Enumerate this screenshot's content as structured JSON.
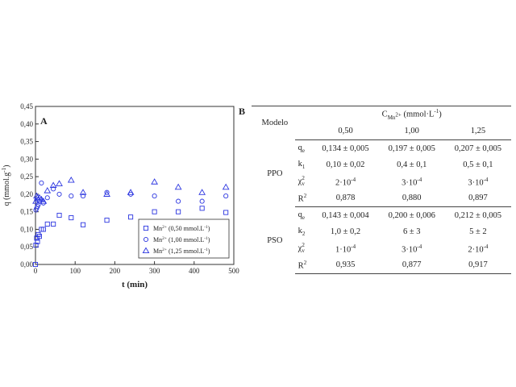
{
  "panel_b_label": "B",
  "table": {
    "header_row_label": "Modelo",
    "conc_header": "CMn2+ (mmol·L-1)",
    "conc_symbol": "C",
    "conc_subscript": "Mn",
    "conc_sub_sup": "2+",
    "conc_units": "(mmol·L",
    "conc_units_exp": "-1",
    "conc_units_close": ")",
    "concentrations": [
      "0,50",
      "1,00",
      "1,25"
    ],
    "models": [
      {
        "name": "PPO",
        "rows": [
          {
            "param": "qe",
            "p_main": "q",
            "p_sub": "e",
            "p_sup": "",
            "values": [
              "0,134 ± 0,005",
              "0,197 ± 0,005",
              "0,207 ± 0,005"
            ]
          },
          {
            "param": "k1",
            "p_main": "k",
            "p_sub": "1",
            "p_sup": "",
            "values": [
              "0,10 ± 0,02",
              "0,4 ± 0,1",
              "0,5 ± 0,1"
            ]
          },
          {
            "param": "χv2",
            "p_main": "χ",
            "p_sub": "v",
            "p_sup": "2",
            "values": [
              "2·10-4",
              "3·10-4",
              "3·10-4"
            ]
          },
          {
            "param": "R2",
            "p_main": "R",
            "p_sub": "",
            "p_sup": "2",
            "values": [
              "0,878",
              "0,880",
              "0,897"
            ]
          }
        ]
      },
      {
        "name": "PSO",
        "rows": [
          {
            "param": "qe",
            "p_main": "q",
            "p_sub": "e",
            "p_sup": "",
            "values": [
              "0,143 ± 0,004",
              "0,200 ± 0,006",
              "0,212 ± 0,005"
            ]
          },
          {
            "param": "k2",
            "p_main": "k",
            "p_sub": "2",
            "p_sup": "",
            "values": [
              "1,0 ± 0,2",
              "6 ± 3",
              "5 ± 2"
            ]
          },
          {
            "param": "χv2",
            "p_main": "χ",
            "p_sub": "v",
            "p_sup": "2",
            "values": [
              "1·10-4",
              "3·10-4",
              "2·10-4"
            ]
          },
          {
            "param": "R2",
            "p_main": "R",
            "p_sub": "",
            "p_sup": "2",
            "values": [
              "0,935",
              "0,877",
              "0,917"
            ]
          }
        ]
      }
    ]
  },
  "chart_data": {
    "type": "scatter",
    "panel_label": "A",
    "xlabel": "t (min)",
    "ylabel": "q (mmol.g-1)",
    "ylabel_main": "q (mmol.g",
    "ylabel_exp": "-1",
    "ylabel_close": ")",
    "xlim": [
      0,
      500
    ],
    "ylim": [
      0,
      0.45
    ],
    "xticks": [
      0,
      100,
      200,
      300,
      400,
      500
    ],
    "xtick_labels": [
      "0",
      "100",
      "200",
      "300",
      "400",
      "500"
    ],
    "yticks": [
      0,
      0.05,
      0.1,
      0.15,
      0.2,
      0.25,
      0.3,
      0.35,
      0.4,
      0.45
    ],
    "ytick_labels": [
      "0,00",
      "0,05",
      "0,10",
      "0,15",
      "0,20",
      "0,25",
      "0,30",
      "0,35",
      "0,40",
      "0,45"
    ],
    "grid": false,
    "legend_position": "bottom-right",
    "marker_color": "#2b35e0",
    "series": [
      {
        "name": "Mn2+ (0,50 mmol.L-1)",
        "legend_main": "Mn",
        "legend_sup": "2+",
        "legend_rest": " (0,50 mmol.L",
        "legend_exp": "-1",
        "legend_close": ")",
        "marker": "square",
        "x": [
          0,
          1,
          3,
          5,
          7,
          10,
          15,
          20,
          30,
          45,
          60,
          90,
          120,
          180,
          240,
          300,
          360,
          420,
          480
        ],
        "y": [
          0.0,
          0.055,
          0.075,
          0.065,
          0.085,
          0.08,
          0.1,
          0.1,
          0.115,
          0.115,
          0.14,
          0.133,
          0.113,
          0.126,
          0.135,
          0.15,
          0.15,
          0.16,
          0.148
        ]
      },
      {
        "name": "Mn2+ (1,00 mmol.L-1)",
        "legend_main": "Mn",
        "legend_sup": "2+",
        "legend_rest": " (1,00 mmol.L",
        "legend_exp": "-1",
        "legend_close": ")",
        "marker": "circle",
        "x": [
          1,
          3,
          5,
          7,
          10,
          15,
          20,
          30,
          45,
          60,
          90,
          120,
          180,
          240,
          300,
          360,
          420,
          480
        ],
        "y": [
          0.155,
          0.16,
          0.165,
          0.17,
          0.18,
          0.232,
          0.175,
          0.19,
          0.215,
          0.2,
          0.195,
          0.195,
          0.205,
          0.2,
          0.195,
          0.18,
          0.18,
          0.195
        ]
      },
      {
        "name": "Mn2+ (1,25 mmol.L-1)",
        "legend_main": "Mn",
        "legend_sup": "2+",
        "legend_rest": " (1,25 mmol.L",
        "legend_exp": "-1",
        "legend_close": ")",
        "marker": "triangle",
        "x": [
          1,
          3,
          5,
          7,
          10,
          15,
          20,
          30,
          45,
          60,
          90,
          120,
          180,
          240,
          300,
          360,
          420,
          480
        ],
        "y": [
          0.18,
          0.195,
          0.19,
          0.185,
          0.19,
          0.185,
          0.18,
          0.21,
          0.225,
          0.23,
          0.24,
          0.205,
          0.2,
          0.205,
          0.235,
          0.22,
          0.205,
          0.22
        ]
      }
    ]
  }
}
